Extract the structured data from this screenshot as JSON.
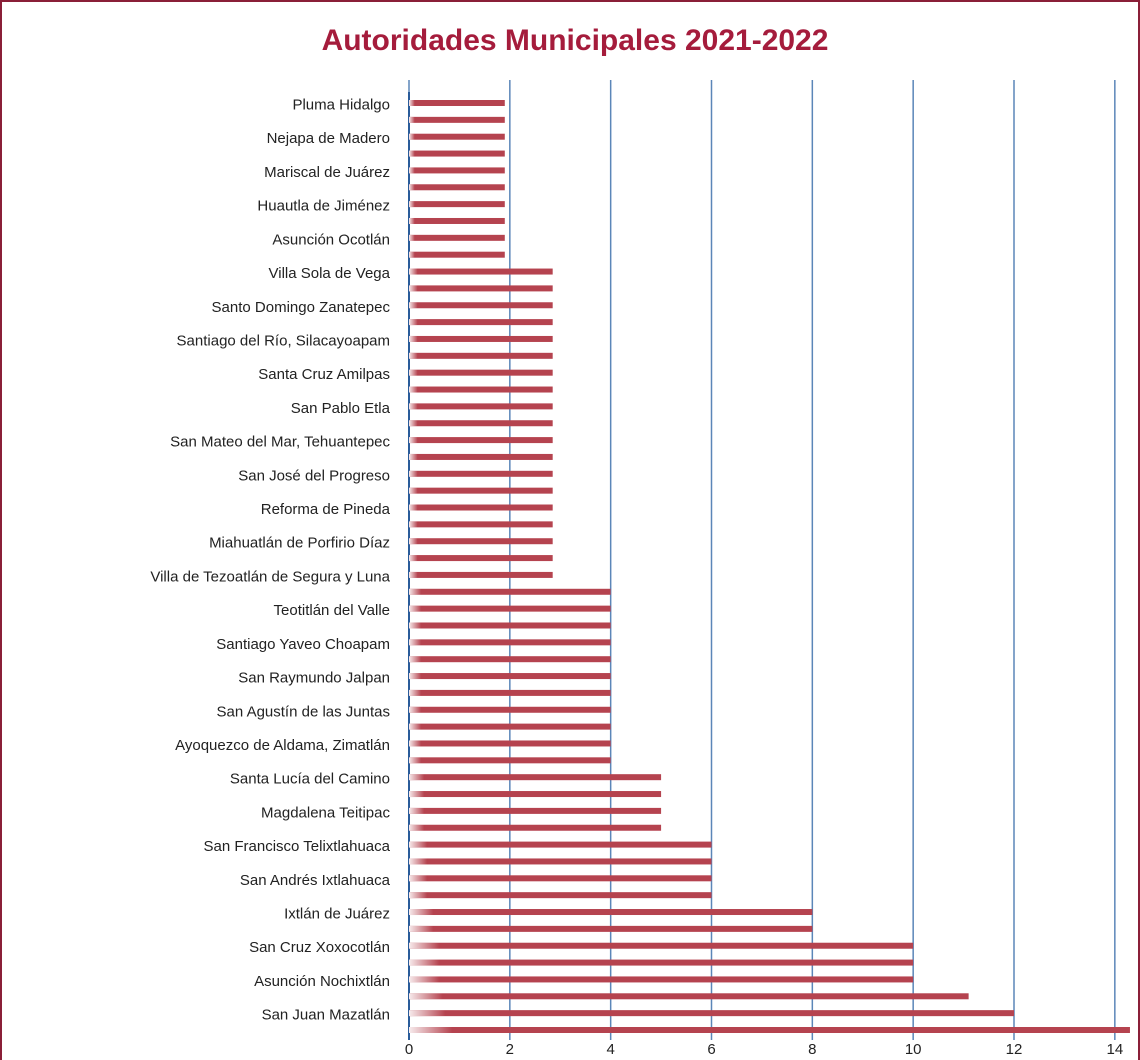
{
  "chart_data": {
    "type": "barh",
    "title": "Autoridades Municipales 2021-2022",
    "categories": [
      "Pluma Hidalgo",
      null,
      "Nejapa de Madero",
      null,
      "Mariscal de Juárez",
      null,
      "Huautla de Jiménez",
      null,
      "Asunción Ocotlán",
      null,
      "Villa Sola de Vega",
      null,
      "Santo Domingo Zanatepec",
      null,
      "Santiago del Río, Silacayoapam",
      null,
      "Santa Cruz Amilpas",
      null,
      "San Pablo Etla",
      null,
      "San Mateo del Mar, Tehuantepec",
      null,
      "San José del Progreso",
      null,
      "Reforma de Pineda",
      null,
      "Miahuatlán de Porfirio Díaz",
      null,
      "Villa de Tezoatlán de Segura y Luna",
      null,
      "Teotitlán del Valle",
      null,
      "Santiago Yaveo Choapam",
      null,
      "San Raymundo Jalpan",
      null,
      "San Agustín de las Juntas",
      null,
      "Ayoquezco de Aldama, Zimatlán",
      null,
      "Santa Lucía del Camino",
      null,
      "Magdalena Teitipac",
      null,
      "San Francisco Telixtlahuaca",
      null,
      "San Andrés Ixtlahuaca",
      null,
      "Ixtlán de Juárez",
      null,
      "San Cruz Xoxocotlán",
      null,
      "Asunción Nochixtlán",
      null,
      "San Juan Mazatlán",
      null
    ],
    "values": [
      1.9,
      1.9,
      1.9,
      1.9,
      1.9,
      1.9,
      1.9,
      1.9,
      1.9,
      1.9,
      2.85,
      2.85,
      2.85,
      2.85,
      2.85,
      2.85,
      2.85,
      2.85,
      2.85,
      2.85,
      2.85,
      2.85,
      2.85,
      2.85,
      2.85,
      2.85,
      2.85,
      2.85,
      2.85,
      4,
      4,
      4,
      4,
      4,
      4,
      4,
      4,
      4,
      4,
      4,
      5,
      5,
      5,
      5,
      6,
      6,
      6,
      6,
      8,
      8,
      10,
      10,
      10,
      11.1,
      12,
      14.3
    ],
    "color": "#b5434f",
    "grid_color": "#5b86b8",
    "xlim": [
      0,
      14.4
    ],
    "xticks": [
      0,
      2,
      4,
      6,
      8,
      10,
      12,
      14
    ],
    "grid": true
  }
}
